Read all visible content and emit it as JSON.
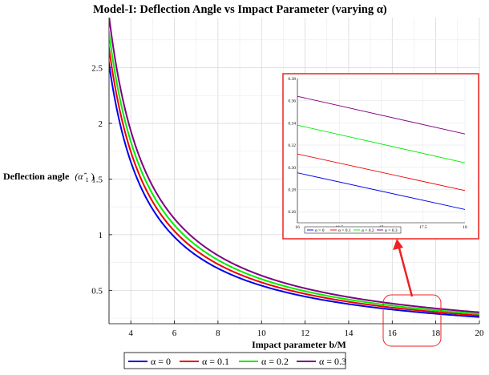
{
  "chart_data": [
    {
      "type": "line",
      "title": "Model-I: Deflection Angle vs Impact Parameter (varying α)",
      "xlabel": "Impact parameter b/M",
      "ylabel": "Deflection angle",
      "ylabel_symbol": "(α̂",
      "ylabel_sub": "1",
      "ylabel_close": ")",
      "xlim": [
        3,
        20
      ],
      "ylim": [
        0.2,
        2.95
      ],
      "x_ticks": [
        4,
        6,
        8,
        10,
        12,
        14,
        16,
        18,
        20
      ],
      "x_tick_labels": [
        "4",
        "6",
        "8",
        "10",
        "12",
        "14",
        "16",
        "18",
        "20"
      ],
      "y_ticks": [
        0.5,
        1,
        1.5,
        2,
        2.5
      ],
      "y_tick_labels": [
        "0.5",
        "1",
        "1.5",
        "2",
        "2.5"
      ],
      "grid": true,
      "legend_position": "bottom-center",
      "series": [
        {
          "name": "α = 0",
          "color": "#0000ee",
          "k": 4.72,
          "points": [
            [
              3,
              2.52
            ],
            [
              4,
              1.68
            ],
            [
              5,
              1.23
            ],
            [
              6,
              0.97
            ],
            [
              8,
              0.67
            ],
            [
              10,
              0.51
            ],
            [
              12,
              0.42
            ],
            [
              14,
              0.35
            ],
            [
              16,
              0.31
            ],
            [
              18,
              0.27
            ],
            [
              20,
              0.24
            ]
          ]
        },
        {
          "name": "α = 0.1",
          "color": "#ee0000",
          "k": 4.98,
          "points": [
            [
              3,
              2.66
            ],
            [
              4,
              1.77
            ],
            [
              5,
              1.3
            ],
            [
              6,
              1.02
            ],
            [
              8,
              0.7
            ],
            [
              10,
              0.54
            ],
            [
              12,
              0.44
            ],
            [
              14,
              0.37
            ],
            [
              16,
              0.32
            ],
            [
              18,
              0.28
            ],
            [
              20,
              0.25
            ]
          ]
        },
        {
          "name": "α = 0.2",
          "color": "#00ee00",
          "k": 5.24,
          "points": [
            [
              3,
              2.8
            ],
            [
              4,
              1.86
            ],
            [
              5,
              1.37
            ],
            [
              6,
              1.08
            ],
            [
              8,
              0.74
            ],
            [
              10,
              0.57
            ],
            [
              12,
              0.46
            ],
            [
              14,
              0.39
            ],
            [
              16,
              0.34
            ],
            [
              18,
              0.3
            ],
            [
              20,
              0.27
            ]
          ]
        },
        {
          "name": "α = 0.3",
          "color": "#800080",
          "k": 5.52,
          "points": [
            [
              3,
              2.95
            ],
            [
              4,
              1.96
            ],
            [
              5,
              1.44
            ],
            [
              6,
              1.13
            ],
            [
              8,
              0.78
            ],
            [
              10,
              0.6
            ],
            [
              12,
              0.49
            ],
            [
              14,
              0.41
            ],
            [
              16,
              0.36
            ],
            [
              18,
              0.32
            ],
            [
              20,
              0.28
            ]
          ]
        }
      ],
      "zoom_region": {
        "x": [
          16,
          18
        ],
        "y": [
          0.25,
          0.38
        ]
      }
    },
    {
      "type": "line",
      "title": "",
      "xlim": [
        16,
        18
      ],
      "ylim": [
        0.25,
        0.38
      ],
      "x_ticks": [
        16,
        16.5,
        17,
        17.5,
        18
      ],
      "x_tick_labels": [
        "16",
        "16.5",
        "17",
        "17.5",
        "18"
      ],
      "y_ticks": [
        0.26,
        0.28,
        0.3,
        0.32,
        0.34,
        0.36,
        0.38
      ],
      "y_tick_labels": [
        "0.26",
        "0.28",
        "0.30",
        "0.32",
        "0.34",
        "0.36",
        "0.38"
      ],
      "series": [
        {
          "name": "α = 0",
          "color": "#0000ee",
          "points": [
            [
              16,
              0.295
            ],
            [
              18,
              0.262
            ]
          ]
        },
        {
          "name": "α = 0.1",
          "color": "#ee0000",
          "points": [
            [
              16,
              0.312
            ],
            [
              18,
              0.279
            ]
          ]
        },
        {
          "name": "α = 0.2",
          "color": "#00ee00",
          "points": [
            [
              16,
              0.338
            ],
            [
              18,
              0.304
            ]
          ]
        },
        {
          "name": "α = 0.3",
          "color": "#800080",
          "points": [
            [
              16,
              0.364
            ],
            [
              18,
              0.33
            ]
          ]
        }
      ],
      "legend_labels": [
        "α = 0",
        "α = 0.1",
        "α = 0.2",
        "α = 0.3"
      ]
    }
  ],
  "colors": {
    "highlight": "#ee2222",
    "grid": "#dddddd",
    "axis": "#000000"
  }
}
